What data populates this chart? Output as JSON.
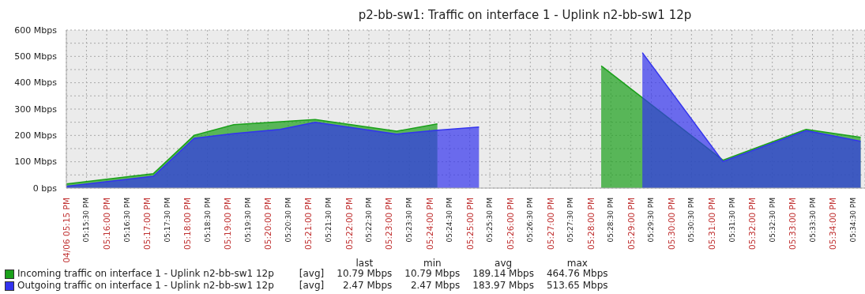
{
  "chart_data": {
    "type": "area",
    "title": "p2-bb-sw1: Traffic on interface 1 - Uplink n2-bb-sw1 12p",
    "series": [
      {
        "name": "Incoming traffic on interface 1 - Uplink n2-bb-sw1 12p",
        "color": "#1aa01a",
        "x": [
          17.25,
          17.286,
          17.3028,
          17.3192,
          17.3488,
          17.3528,
          17.3865,
          17.4033,
          17.44,
          17.471,
          17.5213,
          17.5557,
          17.5782
        ],
        "values": [
          16,
          55,
          200,
          241,
          258,
          260,
          216,
          244,
          null,
          464,
          106,
          223,
          193
        ]
      },
      {
        "name": "Outgoing traffic on interface 1 - Uplink n2-bb-sw1 12p",
        "color": "#3333ee",
        "x": [
          17.25,
          17.286,
          17.3028,
          17.3192,
          17.3383,
          17.3528,
          17.3865,
          17.4033,
          17.4205,
          17.45,
          17.488,
          17.5213,
          17.5557,
          17.5782
        ],
        "values": [
          7,
          45,
          189,
          207,
          223,
          250,
          205,
          220,
          232,
          null,
          514,
          101,
          218,
          178
        ]
      }
    ],
    "annotations": [
      "last",
      "min",
      "avg",
      "max",
      "[avg]",
      "10.79 Mbps",
      "10.79 Mbps",
      "189.14 Mbps",
      "464.76 Mbps",
      "[avg]",
      "2.47 Mbps",
      "2.47 Mbps",
      "183.97 Mbps",
      "513.65 Mbps"
    ],
    "xlim": [
      17.25,
      17.58
    ],
    "xticks": [
      {
        "value": 17.25,
        "label": "04/06 05:15 PM"
      },
      {
        "value": 17.2583,
        "label": "05:15:30 PM"
      },
      {
        "value": 17.2667,
        "label": "05:16:00 PM"
      },
      {
        "value": 17.275,
        "label": "05:16:30 PM"
      },
      {
        "value": 17.2833,
        "label": "05:17:00 PM"
      },
      {
        "value": 17.2917,
        "label": "05:17:30 PM"
      },
      {
        "value": 17.3,
        "label": "05:18:00 PM"
      },
      {
        "value": 17.3083,
        "label": "05:18:30 PM"
      },
      {
        "value": 17.3167,
        "label": "05:19:00 PM"
      },
      {
        "value": 17.325,
        "label": "05:19:30 PM"
      },
      {
        "value": 17.3333,
        "label": "05:20:00 PM"
      },
      {
        "value": 17.3417,
        "label": "05:20:30 PM"
      },
      {
        "value": 17.35,
        "label": "05:21:00 PM"
      },
      {
        "value": 17.3583,
        "label": "05:21:30 PM"
      },
      {
        "value": 17.3667,
        "label": "05:22:00 PM"
      },
      {
        "value": 17.375,
        "label": "05:22:30 PM"
      },
      {
        "value": 17.3833,
        "label": "05:23:00 PM"
      },
      {
        "value": 17.3917,
        "label": "05:23:30 PM"
      },
      {
        "value": 17.4,
        "label": "05:24:00 PM"
      },
      {
        "value": 17.4083,
        "label": "05:24:30 PM"
      },
      {
        "value": 17.4167,
        "label": "05:25:00 PM"
      },
      {
        "value": 17.425,
        "label": "05:25:30 PM"
      },
      {
        "value": 17.4333,
        "label": "05:26:00 PM"
      },
      {
        "value": 17.4417,
        "label": "05:26:30 PM"
      },
      {
        "value": 17.45,
        "label": "05:27:00 PM"
      },
      {
        "value": 17.4583,
        "label": "05:27:30 PM"
      },
      {
        "value": 17.4667,
        "label": "05:28:00 PM"
      },
      {
        "value": 17.475,
        "label": "05:28:30 PM"
      },
      {
        "value": 17.4833,
        "label": "05:29:00 PM"
      },
      {
        "value": 17.4917,
        "label": "05:29:30 PM"
      },
      {
        "value": 17.5,
        "label": "05:30:00 PM"
      },
      {
        "value": 17.5083,
        "label": "05:30:30 PM"
      },
      {
        "value": 17.5167,
        "label": "05:31:00 PM"
      },
      {
        "value": 17.525,
        "label": "05:31:30 PM"
      },
      {
        "value": 17.5333,
        "label": "05:32:00 PM"
      },
      {
        "value": 17.5417,
        "label": "05:32:30 PM"
      },
      {
        "value": 17.55,
        "label": "05:33:00 PM"
      },
      {
        "value": 17.5583,
        "label": "05:33:30 PM"
      },
      {
        "value": 17.5667,
        "label": "05:34:00 PM"
      },
      {
        "value": 17.575,
        "label": "05:34:30 PM"
      }
    ],
    "ylim": [
      0,
      600
    ],
    "yticks": [
      {
        "value": 0,
        "label": "0 bps"
      },
      {
        "value": 50,
        "label": null
      },
      {
        "value": 100,
        "label": "100 Mbps"
      },
      {
        "value": 150,
        "label": null
      },
      {
        "value": 200,
        "label": "200 Mbps"
      },
      {
        "value": 250,
        "label": null
      },
      {
        "value": 300,
        "label": "300 Mbps"
      },
      {
        "value": 350,
        "label": null
      },
      {
        "value": 400,
        "label": "400 Mbps"
      },
      {
        "value": 450,
        "label": null
      },
      {
        "value": 500,
        "label": "500 Mbps"
      },
      {
        "value": 550,
        "label": null
      },
      {
        "value": 600,
        "label": "600 Mbps"
      }
    ],
    "grid": true,
    "legend": "bottom left"
  }
}
